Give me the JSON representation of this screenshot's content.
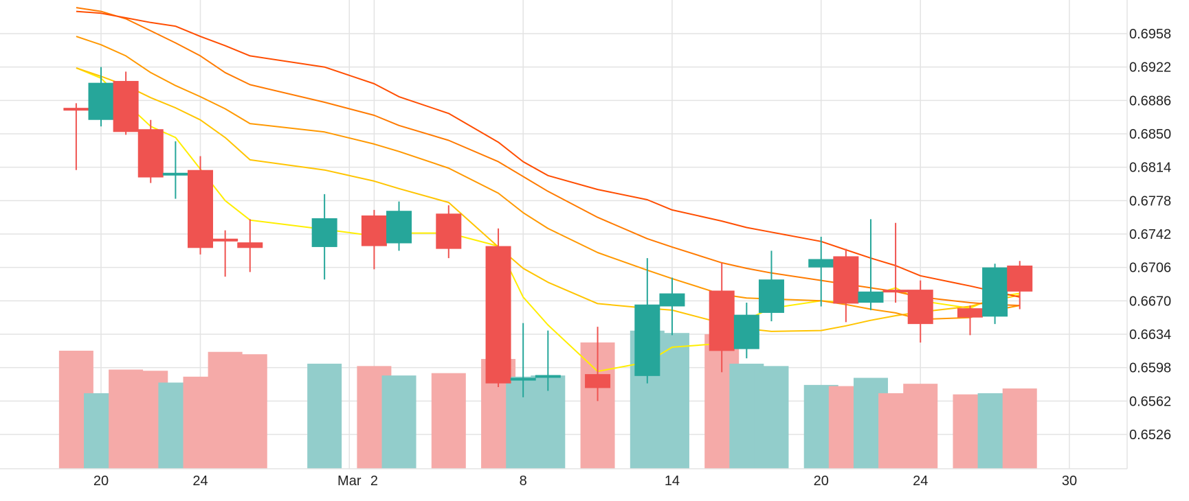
{
  "chart_data": {
    "type": "candlestick",
    "title": "",
    "xlabel": "",
    "ylabel": "",
    "y_axis_position": "right",
    "ylim": [
      0.649,
      0.699
    ],
    "y_ticks": [
      0.6526,
      0.6562,
      0.6598,
      0.6634,
      0.667,
      0.6706,
      0.6742,
      0.6778,
      0.6814,
      0.685,
      0.6886,
      0.6922,
      0.6958
    ],
    "y_tick_labels": [
      "0.6526",
      "0.6562",
      "0.6598",
      "0.6634",
      "0.6670",
      "0.6706",
      "0.6742",
      "0.6778",
      "0.6814",
      "0.6850",
      "0.6886",
      "0.6922",
      "0.6958"
    ],
    "x_ticks": [
      {
        "date": "2020-02-20",
        "label": "20"
      },
      {
        "date": "2020-02-24",
        "label": "24"
      },
      {
        "date": "2020-03-01",
        "label": "Mar"
      },
      {
        "date": "2020-03-02",
        "label": "2"
      },
      {
        "date": "2020-03-08",
        "label": "8"
      },
      {
        "date": "2020-03-14",
        "label": "14"
      },
      {
        "date": "2020-03-20",
        "label": "20"
      },
      {
        "date": "2020-03-24",
        "label": "24"
      },
      {
        "date": "2020-03-30",
        "label": "30"
      }
    ],
    "up_color": "#26a69a",
    "down_color": "#ef5350",
    "volume_up_color": "#92cdcb",
    "volume_down_color": "#f5aaa8",
    "grid": true,
    "candles": [
      {
        "date": "2020-02-19",
        "open": 0.6878,
        "high": 0.6883,
        "low": 0.6811,
        "close": 0.6876,
        "volume": 1.0
      },
      {
        "date": "2020-02-20",
        "open": 0.6865,
        "high": 0.6922,
        "low": 0.6858,
        "close": 0.6905,
        "volume": 0.64
      },
      {
        "date": "2020-02-21",
        "open": 0.6907,
        "high": 0.6917,
        "low": 0.6849,
        "close": 0.6852,
        "volume": 0.84
      },
      {
        "date": "2020-02-22",
        "open": 0.6855,
        "high": 0.6865,
        "low": 0.6797,
        "close": 0.6803,
        "volume": 0.83
      },
      {
        "date": "2020-02-23",
        "open": 0.6806,
        "high": 0.6842,
        "low": 0.678,
        "close": 0.6808,
        "volume": 0.73
      },
      {
        "date": "2020-02-24",
        "open": 0.6811,
        "high": 0.6826,
        "low": 0.672,
        "close": 0.6727,
        "volume": 0.78
      },
      {
        "date": "2020-02-25",
        "open": 0.6737,
        "high": 0.6746,
        "low": 0.6696,
        "close": 0.6734,
        "volume": 0.99
      },
      {
        "date": "2020-02-26",
        "open": 0.6733,
        "high": 0.6758,
        "low": 0.6701,
        "close": 0.6727,
        "volume": 0.97
      },
      {
        "date": "2020-02-29",
        "open": 0.6728,
        "high": 0.6785,
        "low": 0.6693,
        "close": 0.6759,
        "volume": 0.89
      },
      {
        "date": "2020-03-02",
        "open": 0.6762,
        "high": 0.6768,
        "low": 0.6704,
        "close": 0.6729,
        "volume": 0.87
      },
      {
        "date": "2020-03-03",
        "open": 0.6732,
        "high": 0.6777,
        "low": 0.6724,
        "close": 0.6767,
        "volume": 0.79
      },
      {
        "date": "2020-03-05",
        "open": 0.6764,
        "high": 0.6773,
        "low": 0.6716,
        "close": 0.6726,
        "volume": 0.81
      },
      {
        "date": "2020-03-07",
        "open": 0.6729,
        "high": 0.6748,
        "low": 0.6577,
        "close": 0.6581,
        "volume": 0.93
      },
      {
        "date": "2020-03-08",
        "open": 0.6585,
        "high": 0.6646,
        "low": 0.6566,
        "close": 0.6587,
        "volume": 0.78
      },
      {
        "date": "2020-03-09",
        "open": 0.6588,
        "high": 0.6638,
        "low": 0.6573,
        "close": 0.659,
        "volume": 0.79
      },
      {
        "date": "2020-03-11",
        "open": 0.6591,
        "high": 0.6642,
        "low": 0.6562,
        "close": 0.6576,
        "volume": 1.07
      },
      {
        "date": "2020-03-13",
        "open": 0.6589,
        "high": 0.6716,
        "low": 0.6581,
        "close": 0.6666,
        "volume": 1.17
      },
      {
        "date": "2020-03-14",
        "open": 0.6664,
        "high": 0.6695,
        "low": 0.6633,
        "close": 0.6678,
        "volume": 1.15
      },
      {
        "date": "2020-03-16",
        "open": 0.6681,
        "high": 0.6711,
        "low": 0.6593,
        "close": 0.6616,
        "volume": 1.14
      },
      {
        "date": "2020-03-17",
        "open": 0.6618,
        "high": 0.6668,
        "low": 0.6608,
        "close": 0.6655,
        "volume": 0.89
      },
      {
        "date": "2020-03-18",
        "open": 0.6657,
        "high": 0.6724,
        "low": 0.6648,
        "close": 0.6693,
        "volume": 0.87
      },
      {
        "date": "2020-03-20",
        "open": 0.6706,
        "high": 0.6739,
        "low": 0.6664,
        "close": 0.6715,
        "volume": 0.71
      },
      {
        "date": "2020-03-21",
        "open": 0.6718,
        "high": 0.6726,
        "low": 0.6647,
        "close": 0.6667,
        "volume": 0.7
      },
      {
        "date": "2020-03-22",
        "open": 0.6668,
        "high": 0.6758,
        "low": 0.666,
        "close": 0.668,
        "volume": 0.77
      },
      {
        "date": "2020-03-23",
        "open": 0.6682,
        "high": 0.6754,
        "low": 0.6668,
        "close": 0.668,
        "volume": 0.64
      },
      {
        "date": "2020-03-24",
        "open": 0.6682,
        "high": 0.6692,
        "low": 0.6625,
        "close": 0.6645,
        "volume": 0.72
      },
      {
        "date": "2020-03-26",
        "open": 0.6662,
        "high": 0.6665,
        "low": 0.6633,
        "close": 0.6652,
        "volume": 0.63
      },
      {
        "date": "2020-03-27",
        "open": 0.6653,
        "high": 0.671,
        "low": 0.6645,
        "close": 0.6706,
        "volume": 0.64
      },
      {
        "date": "2020-03-28",
        "open": 0.6708,
        "high": 0.6713,
        "low": 0.6661,
        "close": 0.668,
        "volume": 0.68
      }
    ],
    "moving_averages": [
      {
        "color": "#ffee00",
        "points": [
          [
            "2020-02-19",
            0.6921
          ],
          [
            "2020-02-20",
            0.691
          ],
          [
            "2020-02-21",
            0.6883
          ],
          [
            "2020-02-22",
            0.6858
          ],
          [
            "2020-02-23",
            0.6846
          ],
          [
            "2020-02-24",
            0.6812
          ],
          [
            "2020-02-25",
            0.6778
          ],
          [
            "2020-02-26",
            0.6757
          ],
          [
            "2020-02-29",
            0.6747
          ],
          [
            "2020-03-02",
            0.674
          ],
          [
            "2020-03-03",
            0.6743
          ],
          [
            "2020-03-05",
            0.6743
          ],
          [
            "2020-03-07",
            0.6729
          ],
          [
            "2020-03-08",
            0.6674
          ],
          [
            "2020-03-09",
            0.6644
          ],
          [
            "2020-03-11",
            0.6594
          ],
          [
            "2020-03-13",
            0.6604
          ],
          [
            "2020-03-14",
            0.662
          ],
          [
            "2020-03-16",
            0.6624
          ],
          [
            "2020-03-17",
            0.665
          ],
          [
            "2020-03-18",
            0.6662
          ],
          [
            "2020-03-20",
            0.667
          ],
          [
            "2020-03-21",
            0.6668
          ],
          [
            "2020-03-22",
            0.6676
          ],
          [
            "2020-03-23",
            0.6684
          ],
          [
            "2020-03-24",
            0.667
          ],
          [
            "2020-03-26",
            0.6662
          ],
          [
            "2020-03-27",
            0.6674
          ],
          [
            "2020-03-28",
            0.6678
          ]
        ]
      },
      {
        "color": "#ffc400",
        "points": [
          [
            "2020-02-19",
            0.6921
          ],
          [
            "2020-02-20",
            0.6912
          ],
          [
            "2020-02-21",
            0.6902
          ],
          [
            "2020-02-22",
            0.6889
          ],
          [
            "2020-02-23",
            0.6878
          ],
          [
            "2020-02-24",
            0.6865
          ],
          [
            "2020-02-25",
            0.6846
          ],
          [
            "2020-02-26",
            0.6822
          ],
          [
            "2020-02-29",
            0.6811
          ],
          [
            "2020-03-02",
            0.6799
          ],
          [
            "2020-03-03",
            0.6791
          ],
          [
            "2020-03-05",
            0.6776
          ],
          [
            "2020-03-07",
            0.6728
          ],
          [
            "2020-03-08",
            0.6705
          ],
          [
            "2020-03-09",
            0.669
          ],
          [
            "2020-03-11",
            0.6667
          ],
          [
            "2020-03-13",
            0.6662
          ],
          [
            "2020-03-14",
            0.666
          ],
          [
            "2020-03-16",
            0.6646
          ],
          [
            "2020-03-17",
            0.664
          ],
          [
            "2020-03-18",
            0.6637
          ],
          [
            "2020-03-20",
            0.6638
          ],
          [
            "2020-03-21",
            0.6643
          ],
          [
            "2020-03-22",
            0.6649
          ],
          [
            "2020-03-23",
            0.6654
          ],
          [
            "2020-03-24",
            0.6658
          ],
          [
            "2020-03-26",
            0.6664
          ],
          [
            "2020-03-27",
            0.6671
          ],
          [
            "2020-03-28",
            0.6676
          ]
        ]
      },
      {
        "color": "#ff9800",
        "points": [
          [
            "2020-02-19",
            0.6955
          ],
          [
            "2020-02-20",
            0.6946
          ],
          [
            "2020-02-21",
            0.6934
          ],
          [
            "2020-02-22",
            0.6916
          ],
          [
            "2020-02-23",
            0.6902
          ],
          [
            "2020-02-24",
            0.689
          ],
          [
            "2020-02-25",
            0.6877
          ],
          [
            "2020-02-26",
            0.6861
          ],
          [
            "2020-02-29",
            0.6852
          ],
          [
            "2020-03-02",
            0.6839
          ],
          [
            "2020-03-03",
            0.6831
          ],
          [
            "2020-03-05",
            0.6813
          ],
          [
            "2020-03-07",
            0.6786
          ],
          [
            "2020-03-08",
            0.6765
          ],
          [
            "2020-03-09",
            0.6748
          ],
          [
            "2020-03-11",
            0.6722
          ],
          [
            "2020-03-13",
            0.6703
          ],
          [
            "2020-03-14",
            0.6694
          ],
          [
            "2020-03-16",
            0.6677
          ],
          [
            "2020-03-17",
            0.6673
          ],
          [
            "2020-03-18",
            0.6672
          ],
          [
            "2020-03-20",
            0.667
          ],
          [
            "2020-03-21",
            0.6666
          ],
          [
            "2020-03-22",
            0.6661
          ],
          [
            "2020-03-23",
            0.6657
          ],
          [
            "2020-03-24",
            0.665
          ],
          [
            "2020-03-26",
            0.6652
          ],
          [
            "2020-03-27",
            0.666
          ],
          [
            "2020-03-28",
            0.6665
          ]
        ]
      },
      {
        "color": "#ff7a00",
        "points": [
          [
            "2020-02-19",
            0.6986
          ],
          [
            "2020-02-20",
            0.6982
          ],
          [
            "2020-02-21",
            0.6974
          ],
          [
            "2020-02-22",
            0.6961
          ],
          [
            "2020-02-23",
            0.6948
          ],
          [
            "2020-02-24",
            0.6934
          ],
          [
            "2020-02-25",
            0.6916
          ],
          [
            "2020-02-26",
            0.6903
          ],
          [
            "2020-02-29",
            0.6884
          ],
          [
            "2020-03-02",
            0.687
          ],
          [
            "2020-03-03",
            0.6859
          ],
          [
            "2020-03-05",
            0.6843
          ],
          [
            "2020-03-07",
            0.682
          ],
          [
            "2020-03-08",
            0.6804
          ],
          [
            "2020-03-09",
            0.6788
          ],
          [
            "2020-03-11",
            0.676
          ],
          [
            "2020-03-13",
            0.6737
          ],
          [
            "2020-03-14",
            0.6728
          ],
          [
            "2020-03-16",
            0.6711
          ],
          [
            "2020-03-17",
            0.6705
          ],
          [
            "2020-03-18",
            0.67
          ],
          [
            "2020-03-20",
            0.6692
          ],
          [
            "2020-03-21",
            0.6688
          ],
          [
            "2020-03-22",
            0.6684
          ],
          [
            "2020-03-23",
            0.668
          ],
          [
            "2020-03-24",
            0.6674
          ],
          [
            "2020-03-26",
            0.6668
          ],
          [
            "2020-03-27",
            0.6666
          ],
          [
            "2020-03-28",
            0.6665
          ]
        ]
      },
      {
        "color": "#ff4d00",
        "points": [
          [
            "2020-02-19",
            0.6982
          ],
          [
            "2020-02-20",
            0.698
          ],
          [
            "2020-02-21",
            0.6975
          ],
          [
            "2020-02-22",
            0.697
          ],
          [
            "2020-02-23",
            0.6966
          ],
          [
            "2020-02-24",
            0.6955
          ],
          [
            "2020-02-25",
            0.6945
          ],
          [
            "2020-02-26",
            0.6934
          ],
          [
            "2020-02-29",
            0.6922
          ],
          [
            "2020-03-02",
            0.6904
          ],
          [
            "2020-03-03",
            0.689
          ],
          [
            "2020-03-05",
            0.6872
          ],
          [
            "2020-03-07",
            0.6841
          ],
          [
            "2020-03-08",
            0.682
          ],
          [
            "2020-03-09",
            0.6805
          ],
          [
            "2020-03-11",
            0.679
          ],
          [
            "2020-03-13",
            0.6779
          ],
          [
            "2020-03-14",
            0.6768
          ],
          [
            "2020-03-16",
            0.6756
          ],
          [
            "2020-03-17",
            0.6749
          ],
          [
            "2020-03-18",
            0.6744
          ],
          [
            "2020-03-20",
            0.6734
          ],
          [
            "2020-03-21",
            0.6725
          ],
          [
            "2020-03-22",
            0.6716
          ],
          [
            "2020-03-23",
            0.6708
          ],
          [
            "2020-03-24",
            0.6697
          ],
          [
            "2020-03-26",
            0.6686
          ],
          [
            "2020-03-27",
            0.668
          ],
          [
            "2020-03-28",
            0.6674
          ]
        ]
      }
    ]
  }
}
